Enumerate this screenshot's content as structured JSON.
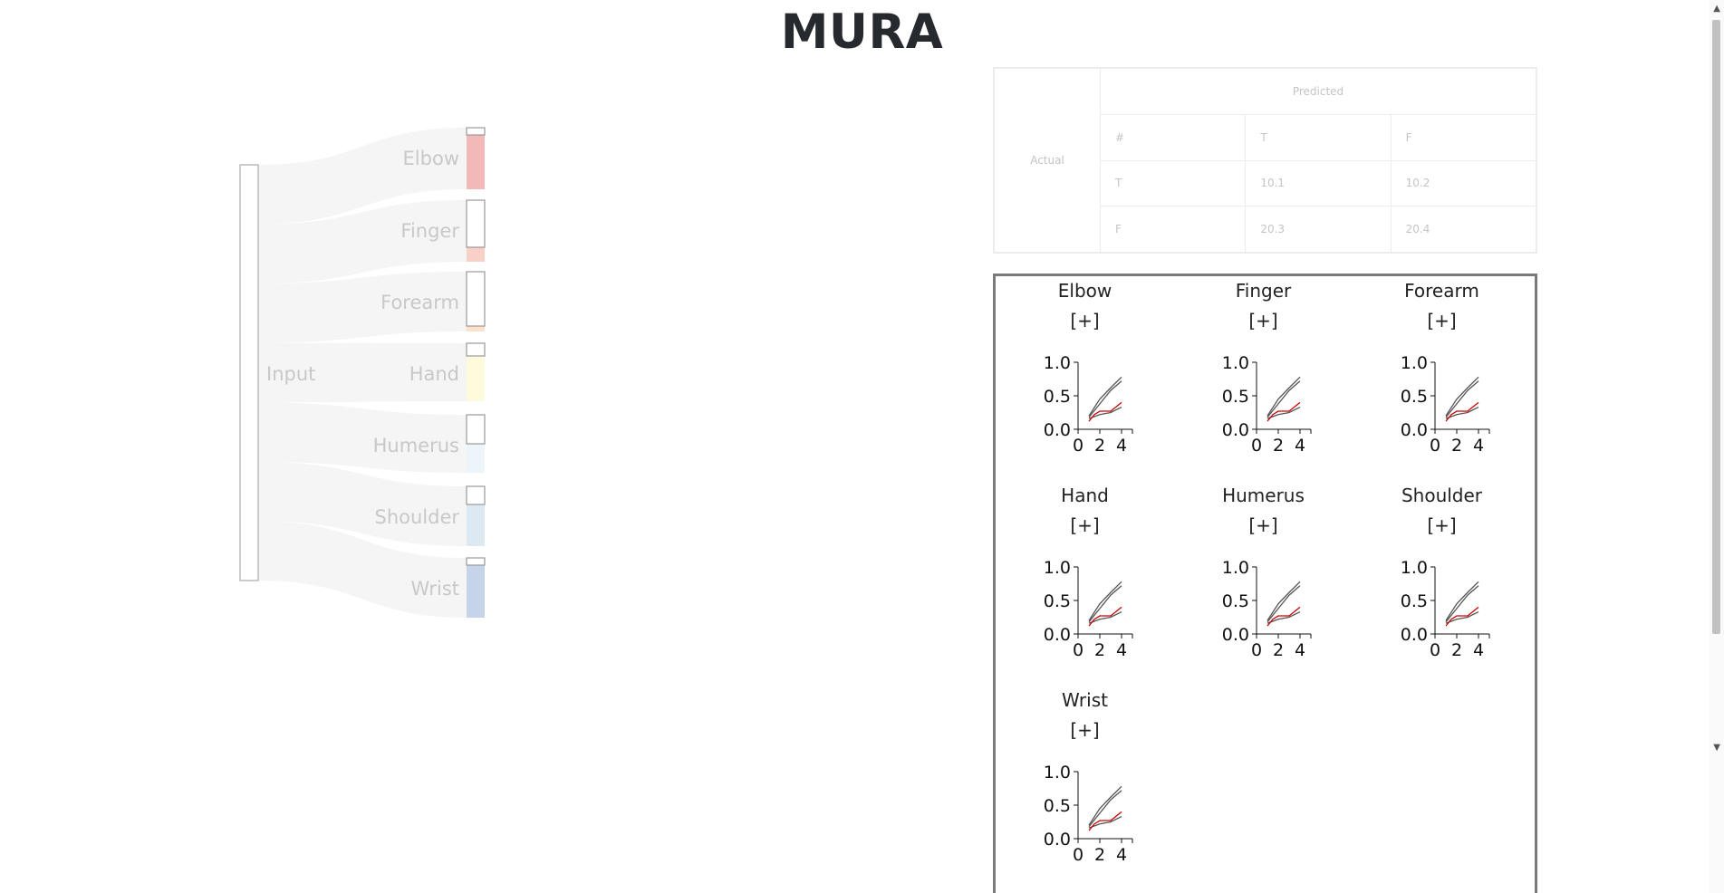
{
  "title": "MURA",
  "sankey": {
    "source_label": "Input",
    "nodes": [
      {
        "label": "Elbow",
        "color": "#f2b9b8"
      },
      {
        "label": "Finger",
        "color": "#f8d0c8"
      },
      {
        "label": "Forearm",
        "color": "#fde2cb"
      },
      {
        "label": "Hand",
        "color": "#fefbdd"
      },
      {
        "label": "Humerus",
        "color": "#eef5fa"
      },
      {
        "label": "Shoulder",
        "color": "#dce9f3"
      },
      {
        "label": "Wrist",
        "color": "#c6d4ea"
      }
    ]
  },
  "confusion": {
    "predicted_label": "Predicted",
    "actual_label": "Actual",
    "header": [
      "#",
      "T",
      "F"
    ],
    "rows": [
      [
        "T",
        "10.1",
        "10.2"
      ],
      [
        "F",
        "20.3",
        "20.4"
      ]
    ]
  },
  "panels": [
    {
      "title": "Elbow",
      "expand": "[+]"
    },
    {
      "title": "Finger",
      "expand": "[+]"
    },
    {
      "title": "Forearm",
      "expand": "[+]"
    },
    {
      "title": "Hand",
      "expand": "[+]"
    },
    {
      "title": "Humerus",
      "expand": "[+]"
    },
    {
      "title": "Shoulder",
      "expand": "[+]"
    },
    {
      "title": "Wrist",
      "expand": "[+]"
    }
  ],
  "chart_data": {
    "type": "line",
    "y_ticks": [
      "1.0",
      "0.5",
      "0.0"
    ],
    "x_ticks": [
      "0",
      "2",
      "4"
    ],
    "ylim": [
      0,
      1
    ],
    "xlim": [
      0,
      5
    ],
    "series": [
      {
        "color": "#555555",
        "x": [
          1,
          2,
          3,
          4
        ],
        "y": [
          0.2,
          0.45,
          0.62,
          0.78
        ]
      },
      {
        "color": "#555555",
        "x": [
          1,
          2,
          3,
          4
        ],
        "y": [
          0.18,
          0.38,
          0.58,
          0.72
        ]
      },
      {
        "color": "#555555",
        "x": [
          1,
          2,
          3,
          4
        ],
        "y": [
          0.16,
          0.22,
          0.25,
          0.33
        ]
      },
      {
        "color": "#cc0000",
        "x": [
          1,
          1.5,
          2,
          3,
          4
        ],
        "y": [
          0.12,
          0.22,
          0.27,
          0.27,
          0.4
        ]
      }
    ]
  }
}
